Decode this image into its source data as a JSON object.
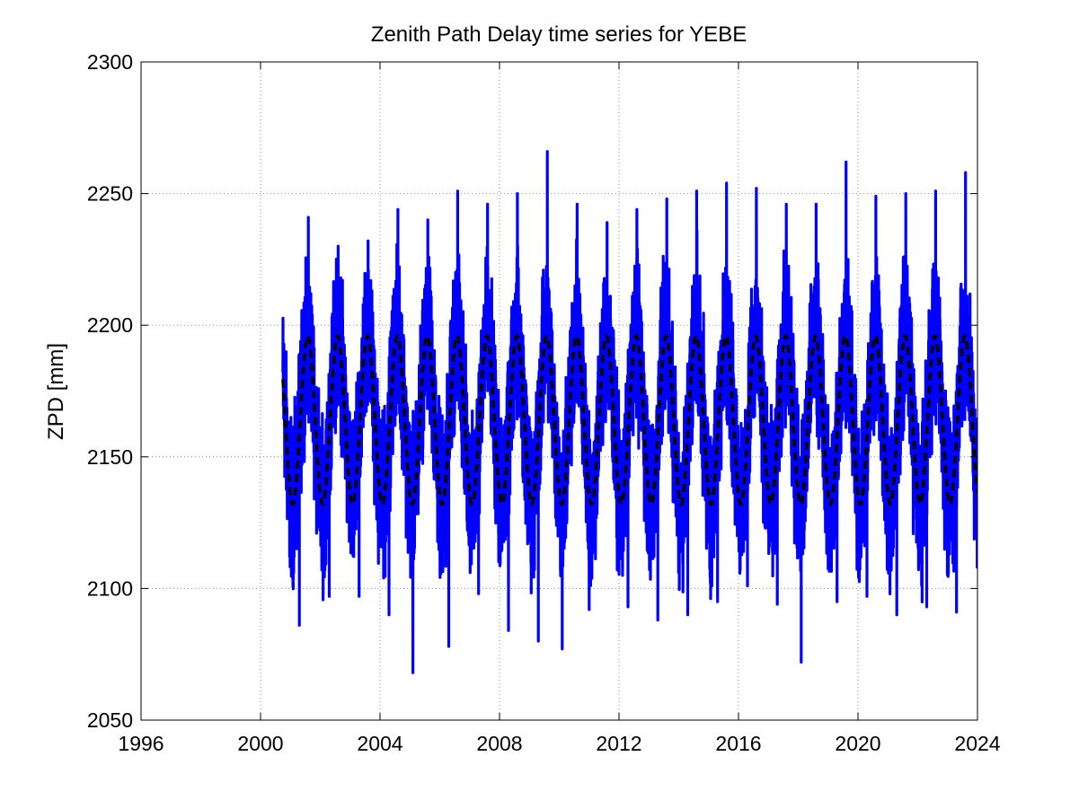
{
  "chart_data": {
    "type": "line",
    "title": "Zenith Path Delay time series for YEBE",
    "xlabel": "",
    "ylabel": "ZPD [mm]",
    "xlim": [
      1996,
      2024
    ],
    "ylim": [
      2050,
      2300
    ],
    "xticks": [
      1996,
      2000,
      2004,
      2008,
      2012,
      2016,
      2020,
      2024
    ],
    "yticks": [
      2050,
      2100,
      2150,
      2200,
      2250,
      2300
    ],
    "grid": true,
    "legend": "none",
    "series": [
      {
        "style": "solid",
        "color": "#0000ff",
        "x_range": [
          2000.75,
          2024.0
        ],
        "approx_mean": 2164,
        "approx_min": 2068,
        "approx_max": 2266,
        "daily_values_note": "dense daily ZPD observations, annual cycle with peaks near mid-year",
        "x": [
          2000.8,
          2001.3,
          2001.6,
          2002.3,
          2002.6,
          2003.3,
          2003.6,
          2004.3,
          2004.6,
          2005.1,
          2005.6,
          2006.3,
          2006.6,
          2007.3,
          2007.6,
          2008.3,
          2008.6,
          2009.3,
          2009.6,
          2010.1,
          2010.6,
          2011.0,
          2011.6,
          2012.3,
          2012.6,
          2013.3,
          2013.6,
          2014.3,
          2014.6,
          2015.3,
          2015.6,
          2016.3,
          2016.6,
          2017.3,
          2017.6,
          2018.1,
          2018.6,
          2019.3,
          2019.6,
          2020.3,
          2020.6,
          2021.3,
          2021.6,
          2022.3,
          2022.6,
          2023.3,
          2023.6,
          2024.0
        ],
        "y": [
          2170,
          2086,
          2241,
          2097,
          2230,
          2097,
          2232,
          2090,
          2244,
          2068,
          2240,
          2078,
          2251,
          2098,
          2246,
          2084,
          2250,
          2080,
          2266,
          2077,
          2246,
          2092,
          2239,
          2093,
          2244,
          2088,
          2248,
          2090,
          2251,
          2095,
          2254,
          2101,
          2252,
          2094,
          2246,
          2072,
          2246,
          2095,
          2262,
          2097,
          2249,
          2090,
          2250,
          2093,
          2251,
          2091,
          2258,
          2113
        ]
      },
      {
        "style": "dashed",
        "color": "#000000",
        "model": "seasonal fit",
        "mean": 2164,
        "amplitude": 32,
        "period_years": 1,
        "peak_phase_year_fraction": 0.58,
        "x_range": [
          2000.75,
          2024.0
        ]
      }
    ]
  }
}
